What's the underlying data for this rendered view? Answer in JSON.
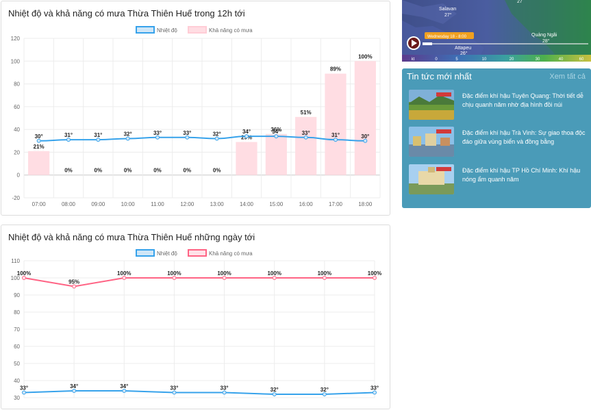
{
  "hourly": {
    "title": "Nhiệt độ và khả năng có mưa Thừa Thiên Huế trong 12h tới",
    "legend": {
      "temp": "Nhiệt độ",
      "rain": "Khả năng có mưa"
    },
    "colors": {
      "temp": "#36a2eb",
      "rain_fill": "#ffdde3",
      "rain_border": "#ffcdd6"
    }
  },
  "daily": {
    "title": "Nhiệt độ và khả năng có mưa Thừa Thiên Huế những ngày tới",
    "legend": {
      "temp": "Nhiệt độ",
      "rain": "Khả năng có mưa"
    },
    "colors": {
      "temp": "#36a2eb",
      "rain": "#ff6384"
    }
  },
  "chart_data": [
    {
      "type": "bar",
      "title": "Nhiệt độ và khả năng có mưa Thừa Thiên Huế trong 12h tới",
      "categories": [
        "07:00",
        "08:00",
        "09:00",
        "10:00",
        "11:00",
        "12:00",
        "13:00",
        "14:00",
        "15:00",
        "16:00",
        "17:00",
        "18:00"
      ],
      "series": [
        {
          "name": "Nhiệt độ",
          "type": "line",
          "values": [
            30,
            31,
            31,
            32,
            33,
            33,
            32,
            34,
            34,
            33,
            31,
            30
          ],
          "labels": [
            "30°",
            "31°",
            "31°",
            "32°",
            "33°",
            "33°",
            "32°",
            "34°",
            "34°",
            "33°",
            "31°",
            "30°"
          ]
        },
        {
          "name": "Khả năng có mưa",
          "type": "bar",
          "values": [
            21,
            0,
            0,
            0,
            0,
            0,
            0,
            29,
            36,
            51,
            89,
            100
          ],
          "labels": [
            "21%",
            "0%",
            "0%",
            "0%",
            "0%",
            "0%",
            "0%",
            "29%",
            "36%",
            "51%",
            "89%",
            "100%"
          ]
        }
      ],
      "yticks": [
        "120",
        "100",
        "80",
        "60",
        "40",
        "20",
        "0",
        "-20"
      ],
      "ylim": [
        -20,
        120
      ],
      "grid": true,
      "legend_position": "top"
    },
    {
      "type": "line",
      "title": "Nhiệt độ và khả năng có mưa Thừa Thiên Huế những ngày tới",
      "series": [
        {
          "name": "Nhiệt độ",
          "values": [
            33,
            34,
            34,
            33,
            33,
            32,
            32,
            33
          ],
          "labels": [
            "33°",
            "34°",
            "34°",
            "33°",
            "33°",
            "32°",
            "32°",
            "33°"
          ]
        },
        {
          "name": "Khả năng có mưa",
          "values": [
            100,
            95,
            100,
            100,
            100,
            100,
            100,
            100
          ],
          "labels": [
            "100%",
            "95%",
            "100%",
            "100%",
            "100%",
            "100%",
            "100%",
            "100%"
          ]
        }
      ],
      "yticks": [
        "110",
        "100",
        "90",
        "80",
        "70",
        "60",
        "50",
        "40",
        "30"
      ],
      "ylim": [
        30,
        110
      ],
      "grid": true,
      "legend_position": "top"
    }
  ],
  "map": {
    "labels": {
      "salavan": "Salavan",
      "salavan_temp": "27°",
      "quang_ngai": "Quảng Ngãi",
      "quang_ngai_temp": "28°",
      "attapeu": "Attapeu",
      "attapeu_temp": "26°",
      "top_temp": "27"
    },
    "time_badge": "Wednesday 18 - 8:00",
    "scale": [
      "kt",
      "0",
      "5",
      "10",
      "20",
      "30",
      "40",
      "60"
    ]
  },
  "news": {
    "header": "Tin tức mới nhất",
    "see_all": "Xem tất cả",
    "items": [
      {
        "title": "Đặc điểm khí hậu Tuyên Quang: Thời tiết dễ chịu quanh năm nhờ địa hình đồi núi"
      },
      {
        "title": "Đặc điểm khí hậu Trà Vinh: Sự giao thoa độc đáo giữa vùng biển và đồng bằng"
      },
      {
        "title": "Đặc điểm khí hậu TP Hồ Chí Minh: Khí hậu nóng ẩm quanh năm"
      }
    ]
  }
}
